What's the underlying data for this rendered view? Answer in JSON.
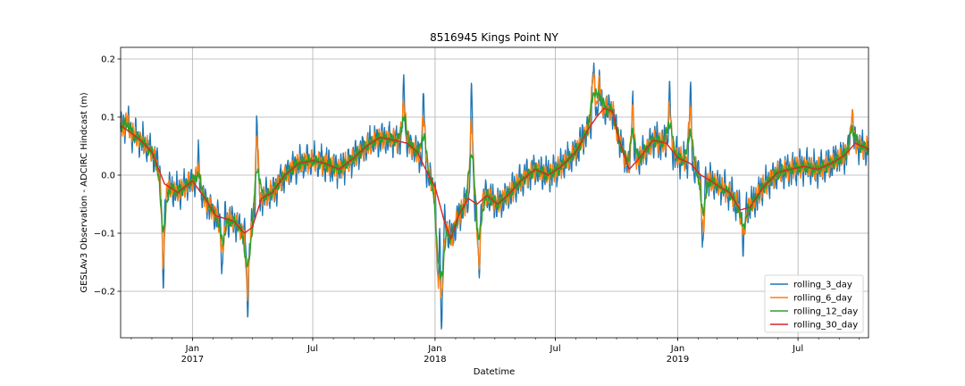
{
  "chart_data": {
    "type": "line",
    "title": "8516945 Kings Point NY",
    "xlabel": "Datetime",
    "ylabel": "GESLAv3 Observation - ADCIRC Hindcast (m)",
    "xlim": [
      "2016-09-15",
      "2019-10-15"
    ],
    "ylim": [
      -0.28,
      0.22
    ],
    "y_ticks": [
      -0.2,
      -0.1,
      0.0,
      0.1,
      0.2
    ],
    "y_tick_labels": [
      "−0.2",
      "−0.1",
      "0.0",
      "0.1",
      "0.2"
    ],
    "x_ticks": [
      {
        "date": "2017-01-01",
        "label": "Jan",
        "year": "2017"
      },
      {
        "date": "2017-07-01",
        "label": "Jul",
        "year": ""
      },
      {
        "date": "2018-01-01",
        "label": "Jan",
        "year": "2018"
      },
      {
        "date": "2018-07-01",
        "label": "Jul",
        "year": ""
      },
      {
        "date": "2019-01-01",
        "label": "Jan",
        "year": "2019"
      },
      {
        "date": "2019-07-01",
        "label": "Jul",
        "year": ""
      }
    ],
    "grid": true,
    "legend_position": "lower-right",
    "baseline_date": "2016-09-15",
    "series": [
      {
        "name": "rolling_3_day",
        "color": "#1f77b4",
        "noise": 0.032,
        "width": 1.3
      },
      {
        "name": "rolling_6_day",
        "color": "#ff7f0e",
        "noise": 0.02,
        "width": 1.3
      },
      {
        "name": "rolling_12_day",
        "color": "#2ca02c",
        "noise": 0.011,
        "width": 1.4
      },
      {
        "name": "rolling_30_day",
        "color": "#d62728",
        "noise": 0.0,
        "width": 1.4
      }
    ],
    "trend": {
      "date": [
        "2016-09-15",
        "2016-09-28",
        "2016-10-15",
        "2016-11-01",
        "2016-11-20",
        "2016-12-10",
        "2017-01-01",
        "2017-01-20",
        "2017-02-05",
        "2017-02-20",
        "2017-03-05",
        "2017-03-20",
        "2017-04-01",
        "2017-04-15",
        "2017-05-01",
        "2017-05-20",
        "2017-06-10",
        "2017-07-01",
        "2017-07-20",
        "2017-08-10",
        "2017-09-01",
        "2017-09-20",
        "2017-10-10",
        "2017-11-01",
        "2017-11-20",
        "2017-12-05",
        "2017-12-20",
        "2018-01-01",
        "2018-01-15",
        "2018-01-25",
        "2018-02-05",
        "2018-02-20",
        "2018-03-05",
        "2018-03-20",
        "2018-04-05",
        "2018-04-20",
        "2018-05-10",
        "2018-06-01",
        "2018-06-20",
        "2018-07-10",
        "2018-08-01",
        "2018-08-20",
        "2018-09-01",
        "2018-09-12",
        "2018-09-25",
        "2018-10-05",
        "2018-10-20",
        "2018-11-05",
        "2018-11-25",
        "2018-12-15",
        "2019-01-01",
        "2019-01-20",
        "2019-02-05",
        "2019-02-20",
        "2019-03-05",
        "2019-03-20",
        "2019-04-05",
        "2019-04-20",
        "2019-05-10",
        "2019-06-01",
        "2019-06-20",
        "2019-07-10",
        "2019-07-30",
        "2019-08-20",
        "2019-09-10",
        "2019-09-25",
        "2019-10-15"
      ],
      "y": [
        0.085,
        0.075,
        0.06,
        0.04,
        -0.015,
        -0.03,
        -0.01,
        -0.04,
        -0.07,
        -0.075,
        -0.08,
        -0.1,
        -0.09,
        -0.04,
        -0.03,
        0.0,
        0.02,
        0.025,
        0.02,
        0.01,
        0.03,
        0.05,
        0.065,
        0.06,
        0.055,
        0.04,
        0.005,
        -0.02,
        -0.08,
        -0.11,
        -0.07,
        -0.04,
        -0.05,
        -0.035,
        -0.05,
        -0.035,
        -0.01,
        0.01,
        0.0,
        0.015,
        0.04,
        0.08,
        0.1,
        0.115,
        0.11,
        0.06,
        0.01,
        0.03,
        0.06,
        0.055,
        0.03,
        0.02,
        0.0,
        -0.01,
        -0.02,
        -0.03,
        -0.06,
        -0.055,
        -0.02,
        0.005,
        0.01,
        0.015,
        0.01,
        0.02,
        0.035,
        0.055,
        0.045
      ]
    },
    "spikes": [
      {
        "date": "2016-09-25",
        "y": 0.1
      },
      {
        "date": "2016-11-18",
        "y": -0.19
      },
      {
        "date": "2017-01-10",
        "y": 0.03
      },
      {
        "date": "2017-02-15",
        "y": -0.16
      },
      {
        "date": "2017-03-25",
        "y": -0.23
      },
      {
        "date": "2017-04-08",
        "y": 0.1
      },
      {
        "date": "2017-11-15",
        "y": 0.15
      },
      {
        "date": "2017-12-15",
        "y": 0.13
      },
      {
        "date": "2018-01-05",
        "y": -0.2
      },
      {
        "date": "2018-01-11",
        "y": -0.255
      },
      {
        "date": "2018-02-25",
        "y": 0.14
      },
      {
        "date": "2018-03-08",
        "y": -0.18
      },
      {
        "date": "2018-08-27",
        "y": 0.195
      },
      {
        "date": "2018-09-05",
        "y": 0.17
      },
      {
        "date": "2018-10-25",
        "y": 0.14
      },
      {
        "date": "2018-12-20",
        "y": 0.14
      },
      {
        "date": "2019-01-20",
        "y": 0.14
      },
      {
        "date": "2019-02-08",
        "y": -0.13
      },
      {
        "date": "2019-04-10",
        "y": -0.12
      },
      {
        "date": "2019-09-20",
        "y": 0.115
      }
    ]
  }
}
